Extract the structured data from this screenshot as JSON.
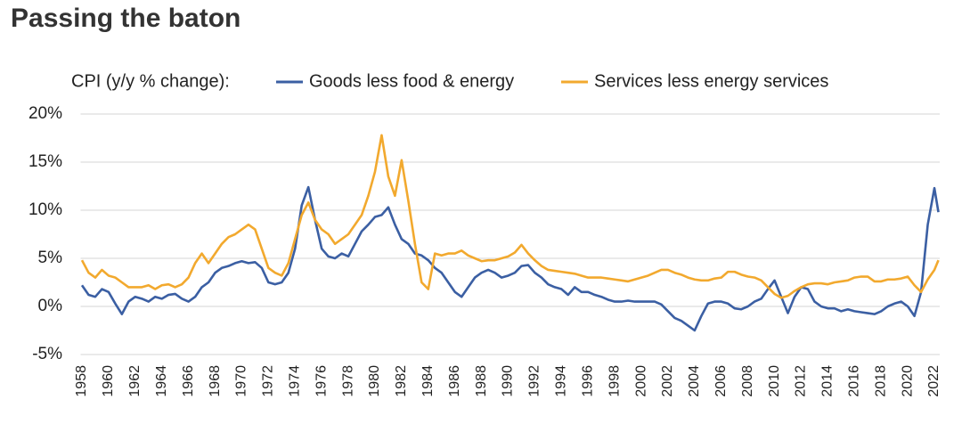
{
  "chart_data": {
    "type": "line",
    "title": "Passing the baton",
    "legend_title": "CPI (y/y % change):",
    "x": [
      1958,
      1958.5,
      1959,
      1959.5,
      1960,
      1960.5,
      1961,
      1961.5,
      1962,
      1962.5,
      1963,
      1963.5,
      1964,
      1964.5,
      1965,
      1965.5,
      1966,
      1966.5,
      1967,
      1967.5,
      1968,
      1968.5,
      1969,
      1969.5,
      1970,
      1970.5,
      1971,
      1971.5,
      1972,
      1972.5,
      1973,
      1973.5,
      1974,
      1974.5,
      1975,
      1975.5,
      1976,
      1976.5,
      1977,
      1977.5,
      1978,
      1978.5,
      1979,
      1979.5,
      1980,
      1980.5,
      1981,
      1981.5,
      1982,
      1982.5,
      1983,
      1983.5,
      1984,
      1984.5,
      1985,
      1985.5,
      1986,
      1986.5,
      1987,
      1987.5,
      1988,
      1988.5,
      1989,
      1989.5,
      1990,
      1990.5,
      1991,
      1991.5,
      1992,
      1992.5,
      1993,
      1993.5,
      1994,
      1994.5,
      1995,
      1995.5,
      1996,
      1996.5,
      1997,
      1997.5,
      1998,
      1998.5,
      1999,
      1999.5,
      2000,
      2000.5,
      2001,
      2001.5,
      2002,
      2002.5,
      2003,
      2003.5,
      2004,
      2004.5,
      2005,
      2005.5,
      2006,
      2006.5,
      2007,
      2007.5,
      2008,
      2008.5,
      2009,
      2009.5,
      2010,
      2010.5,
      2011,
      2011.5,
      2012,
      2012.5,
      2013,
      2013.5,
      2014,
      2014.5,
      2015,
      2015.5,
      2016,
      2016.5,
      2017,
      2017.5,
      2018,
      2018.5,
      2019,
      2019.5,
      2020,
      2020.5,
      2021,
      2021.5,
      2022,
      2022.3
    ],
    "series": [
      {
        "name": "Goods less food & energy",
        "color": "#3b5fa3",
        "values": [
          2.2,
          1.2,
          1.0,
          1.8,
          1.5,
          0.3,
          -0.8,
          0.5,
          1.0,
          0.8,
          0.5,
          1.0,
          0.8,
          1.2,
          1.3,
          0.8,
          0.5,
          1.0,
          2.0,
          2.5,
          3.5,
          4.0,
          4.2,
          4.5,
          4.7,
          4.5,
          4.6,
          4.0,
          2.5,
          2.3,
          2.5,
          3.5,
          6.0,
          10.5,
          12.4,
          9.0,
          6.0,
          5.2,
          5.0,
          5.5,
          5.2,
          6.5,
          7.8,
          8.5,
          9.3,
          9.5,
          10.3,
          8.5,
          7.0,
          6.5,
          5.5,
          5.3,
          4.8,
          4.0,
          3.5,
          2.5,
          1.5,
          1.0,
          2.0,
          3.0,
          3.5,
          3.8,
          3.5,
          3.0,
          3.2,
          3.5,
          4.2,
          4.3,
          3.5,
          3.0,
          2.3,
          2.0,
          1.8,
          1.2,
          2.0,
          1.5,
          1.5,
          1.2,
          1.0,
          0.7,
          0.5,
          0.5,
          0.6,
          0.5,
          0.5,
          0.5,
          0.5,
          0.2,
          -0.5,
          -1.2,
          -1.5,
          -2.0,
          -2.5,
          -1.0,
          0.3,
          0.5,
          0.5,
          0.3,
          -0.2,
          -0.3,
          0.0,
          0.5,
          0.8,
          1.8,
          2.7,
          1.0,
          -0.7,
          1.0,
          2.0,
          1.8,
          0.5,
          0.0,
          -0.2,
          -0.2,
          -0.5,
          -0.3,
          -0.5,
          -0.6,
          -0.7,
          -0.8,
          -0.5,
          0.0,
          0.3,
          0.5,
          0.0,
          -1.0,
          1.5,
          8.5,
          12.3,
          9.8
        ]
      },
      {
        "name": "Services less energy services",
        "color": "#f2a92e",
        "values": [
          4.8,
          3.5,
          3.0,
          3.8,
          3.2,
          3.0,
          2.5,
          2.0,
          2.0,
          2.0,
          2.2,
          1.8,
          2.2,
          2.3,
          2.0,
          2.3,
          3.0,
          4.5,
          5.5,
          4.5,
          5.5,
          6.5,
          7.2,
          7.5,
          8.0,
          8.5,
          8.0,
          6.0,
          4.0,
          3.5,
          3.2,
          4.5,
          7.0,
          9.5,
          10.8,
          9.0,
          8.0,
          7.5,
          6.5,
          7.0,
          7.5,
          8.5,
          9.5,
          11.5,
          14.0,
          17.8,
          13.5,
          11.5,
          15.2,
          11.0,
          6.5,
          2.5,
          1.8,
          5.5,
          5.3,
          5.5,
          5.5,
          5.8,
          5.3,
          5.0,
          4.7,
          4.8,
          4.8,
          5.0,
          5.2,
          5.6,
          6.4,
          5.5,
          4.8,
          4.2,
          3.8,
          3.7,
          3.6,
          3.5,
          3.4,
          3.2,
          3.0,
          3.0,
          3.0,
          2.9,
          2.8,
          2.7,
          2.6,
          2.8,
          3.0,
          3.2,
          3.5,
          3.8,
          3.8,
          3.5,
          3.3,
          3.0,
          2.8,
          2.7,
          2.7,
          2.9,
          3.0,
          3.6,
          3.6,
          3.3,
          3.1,
          3.0,
          2.7,
          2.0,
          1.3,
          0.9,
          1.1,
          1.6,
          2.0,
          2.3,
          2.4,
          2.4,
          2.3,
          2.5,
          2.6,
          2.7,
          3.0,
          3.1,
          3.1,
          2.6,
          2.6,
          2.8,
          2.8,
          2.9,
          3.1,
          2.2,
          1.5,
          2.8,
          3.8,
          4.8
        ]
      }
    ],
    "xlim": [
      1957.9,
      2022.6
    ],
    "xticks": [
      1958,
      1960,
      1962,
      1964,
      1966,
      1968,
      1970,
      1972,
      1974,
      1976,
      1978,
      1980,
      1982,
      1984,
      1986,
      1988,
      1990,
      1992,
      1994,
      1996,
      1998,
      2000,
      2002,
      2004,
      2006,
      2008,
      2010,
      2012,
      2014,
      2016,
      2018,
      2020,
      2022
    ],
    "ylim": [
      -5,
      20
    ],
    "yticks": [
      {
        "value": -5,
        "label": "-5%"
      },
      {
        "value": 0,
        "label": "0%"
      },
      {
        "value": 5,
        "label": "5%"
      },
      {
        "value": 10,
        "label": "10%"
      },
      {
        "value": 15,
        "label": "15%"
      },
      {
        "value": 20,
        "label": "20%"
      }
    ],
    "grid": true
  }
}
